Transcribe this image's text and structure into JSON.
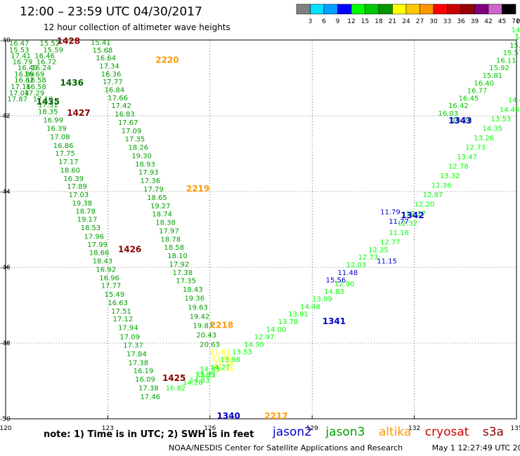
{
  "title": "12:00 – 23:59 UTC 04/30/2017",
  "subtitle": "12 hour collection of altimeter wave heights",
  "note": "note:  1) Time is in UTC;  2) SWH is in feet",
  "credit": "NOAA/NESDIS Center for Satellite Applications and Research",
  "timestamp": "May  1 12:27:49 UTC 2017",
  "legend": [
    {
      "name": "jason2",
      "color": "#0000cc"
    },
    {
      "name": "jason3",
      "color": "#00a000"
    },
    {
      "name": "altika",
      "color": "#ff9900"
    },
    {
      "name": "cryosat",
      "color": "#cc0000"
    },
    {
      "name": "s3a",
      "color": "#8b0000"
    }
  ],
  "colorbar": {
    "labels": [
      "3",
      "6",
      "9",
      "12",
      "15",
      "18",
      "21",
      "24",
      "27",
      "30",
      "33",
      "36",
      "39",
      "42",
      "45",
      "70"
    ],
    "unit": "(ft)",
    "colors": [
      "#808080",
      "#00e0ff",
      "#00a0ff",
      "#0000ff",
      "#00ff00",
      "#00c800",
      "#009600",
      "#ffff00",
      "#ffc800",
      "#ff9600",
      "#ff0000",
      "#c80000",
      "#960000",
      "#800080",
      "#cc66cc",
      "#000000"
    ]
  },
  "chart_data": {
    "type": "scatter",
    "xlim": [
      120,
      135
    ],
    "ylim": [
      -50,
      -40
    ],
    "xticks": [
      120,
      123,
      126,
      129,
      132,
      135
    ],
    "yticks": [
      -40,
      -42,
      -44,
      -46,
      -48,
      -50
    ],
    "grid": true,
    "passes": [
      {
        "label": "1428",
        "lon": 121.5,
        "lat": -40.1,
        "color": "#8b0000"
      },
      {
        "label": "1436",
        "lon": 121.6,
        "lat": -41.2,
        "color": "#006400"
      },
      {
        "label": "1435",
        "lon": 120.9,
        "lat": -41.7,
        "color": "#006400"
      },
      {
        "label": "1427",
        "lon": 121.8,
        "lat": -42.0,
        "color": "#8b0000"
      },
      {
        "label": "1426",
        "lon": 123.3,
        "lat": -45.6,
        "color": "#8b0000"
      },
      {
        "label": "1425",
        "lon": 124.6,
        "lat": -49.0,
        "color": "#8b0000"
      },
      {
        "label": "2220",
        "lon": 124.4,
        "lat": -40.6,
        "color": "#ff9900"
      },
      {
        "label": "2219",
        "lon": 125.3,
        "lat": -44.0,
        "color": "#ff9900"
      },
      {
        "label": "2218",
        "lon": 126.0,
        "lat": -47.6,
        "color": "#ff9900"
      },
      {
        "label": "2217",
        "lon": 127.6,
        "lat": -50.0,
        "color": "#ff9900"
      },
      {
        "label": "1340",
        "lon": 126.2,
        "lat": -50.0,
        "color": "#0000cc"
      },
      {
        "label": "1341",
        "lon": 129.3,
        "lat": -47.5,
        "color": "#0000cc"
      },
      {
        "label": "1342",
        "lon": 131.6,
        "lat": -44.7,
        "color": "#0000cc"
      },
      {
        "label": "1343",
        "lon": 133.0,
        "lat": -42.2,
        "color": "#0000cc"
      }
    ],
    "tracks": [
      {
        "name": "s3a_1428_1427",
        "color": "#00a000",
        "points": [
          [
            120.1,
            -40.15,
            "16.47"
          ],
          [
            121.0,
            -40.15,
            "15.52"
          ],
          [
            120.1,
            -40.32,
            "15.53"
          ],
          [
            121.1,
            -40.32,
            "15.59"
          ],
          [
            120.15,
            -40.48,
            "17.41"
          ],
          [
            120.85,
            -40.48,
            "16.46"
          ],
          [
            120.2,
            -40.64,
            "16.79"
          ],
          [
            120.9,
            -40.64,
            "16.72"
          ],
          [
            120.35,
            -40.8,
            "16.49"
          ],
          [
            120.75,
            -40.8,
            "16.24"
          ],
          [
            120.25,
            -40.96,
            "16.89"
          ],
          [
            120.55,
            -40.96,
            "16.69"
          ],
          [
            120.25,
            -41.12,
            "16.62"
          ],
          [
            120.6,
            -41.12,
            "16.58"
          ],
          [
            120.15,
            -41.3,
            "17.16"
          ],
          [
            120.6,
            -41.3,
            "16.58"
          ],
          [
            120.1,
            -41.46,
            "17.04"
          ],
          [
            120.55,
            -41.46,
            "17.29"
          ],
          [
            120.05,
            -41.62,
            "17.87"
          ],
          [
            120.8,
            -41.62,
            "17.10"
          ],
          [
            120.95,
            -41.78,
            "17.51"
          ],
          [
            120.95,
            -41.95,
            "18.35"
          ]
        ]
      },
      {
        "name": "s3a_1426",
        "color": "#00a000",
        "points": [
          [
            121.1,
            -42.18,
            "16.99"
          ],
          [
            121.2,
            -42.4,
            "16.39"
          ],
          [
            121.3,
            -42.62,
            "17.08"
          ],
          [
            121.4,
            -42.85,
            "16.86"
          ],
          [
            121.45,
            -43.06,
            "17.75"
          ],
          [
            121.55,
            -43.28,
            "17.17"
          ],
          [
            121.6,
            -43.5,
            "18.60"
          ],
          [
            121.7,
            -43.72,
            "16.39"
          ],
          [
            121.8,
            -43.93,
            "17.89"
          ],
          [
            121.85,
            -44.15,
            "17.03"
          ],
          [
            121.95,
            -44.37,
            "19.38"
          ],
          [
            122.05,
            -44.58,
            "18.78"
          ],
          [
            122.1,
            -44.8,
            "19.17"
          ],
          [
            122.2,
            -45.02,
            "18.53"
          ],
          [
            122.3,
            -45.25,
            "17.96"
          ],
          [
            122.4,
            -45.46,
            "17.99"
          ],
          [
            122.45,
            -45.68,
            "18.66"
          ],
          [
            122.55,
            -45.9,
            "18.43"
          ],
          [
            122.65,
            -46.12,
            "16.92"
          ],
          [
            122.75,
            -46.34,
            "16.96"
          ],
          [
            122.8,
            -46.55,
            "17.77"
          ],
          [
            122.9,
            -46.78,
            "15.49"
          ],
          [
            123.0,
            -47.0,
            "16.63"
          ],
          [
            123.1,
            -47.22,
            "17.51"
          ],
          [
            123.15,
            -47.43,
            "17.12"
          ]
        ]
      },
      {
        "name": "s3a_1425",
        "color": "#00a000",
        "points": [
          [
            123.3,
            -47.66,
            "17.94"
          ],
          [
            123.35,
            -47.9,
            "17.09"
          ],
          [
            123.45,
            -48.12,
            "17.37"
          ],
          [
            123.55,
            -48.35,
            "17.84"
          ],
          [
            123.6,
            -48.58,
            "17.38"
          ],
          [
            123.75,
            -48.8,
            "16.19"
          ],
          [
            123.8,
            -49.02,
            "16.09"
          ],
          [
            123.9,
            -49.25,
            "17.38"
          ],
          [
            123.95,
            -49.48,
            "17.46"
          ]
        ]
      },
      {
        "name": "altika_2220",
        "color": "#00a000",
        "points": [
          [
            122.5,
            -40.13,
            "15.41"
          ],
          [
            122.55,
            -40.33,
            "15.68"
          ],
          [
            122.65,
            -40.54,
            "16.64"
          ],
          [
            122.75,
            -40.75,
            "17.34"
          ],
          [
            122.8,
            -40.96,
            "16.36"
          ],
          [
            122.85,
            -41.17,
            "17.77"
          ],
          [
            122.9,
            -41.38,
            "16.84"
          ],
          [
            123.0,
            -41.59,
            "17.66"
          ],
          [
            123.1,
            -41.8,
            "17.42"
          ],
          [
            123.2,
            -42.02,
            "16.83"
          ],
          [
            123.3,
            -42.24,
            "17.67"
          ],
          [
            123.4,
            -42.46,
            "17.09"
          ],
          [
            123.5,
            -42.68,
            "17.35"
          ],
          [
            123.6,
            -42.9,
            "18.26"
          ],
          [
            123.7,
            -43.12,
            "19.30"
          ],
          [
            123.8,
            -43.34,
            "18.93"
          ],
          [
            123.9,
            -43.56,
            "17.93"
          ]
        ]
      },
      {
        "name": "altika_2219",
        "color": "#00a000",
        "points": [
          [
            123.95,
            -43.78,
            "17.36"
          ],
          [
            124.05,
            -44.0,
            "17.79"
          ],
          [
            124.15,
            -44.22,
            "18.65"
          ],
          [
            124.25,
            -44.44,
            "19.27"
          ],
          [
            124.3,
            -44.66,
            "18.74"
          ],
          [
            124.4,
            -44.88,
            "18.38"
          ],
          [
            124.5,
            -45.1,
            "17.97"
          ],
          [
            124.55,
            -45.32,
            "18.78"
          ],
          [
            124.65,
            -45.54,
            "18.58"
          ],
          [
            124.75,
            -45.76,
            "18.10"
          ],
          [
            124.8,
            -45.98,
            "17.92"
          ],
          [
            124.9,
            -46.2,
            "17.38"
          ],
          [
            125.0,
            -46.42,
            "17.35"
          ]
        ]
      },
      {
        "name": "altika_2218",
        "color": "#00a000",
        "points": [
          [
            125.2,
            -46.65,
            "18.43"
          ],
          [
            125.25,
            -46.88,
            "19.36"
          ],
          [
            125.35,
            -47.12,
            "19.63"
          ],
          [
            125.4,
            -47.36,
            "19.42"
          ],
          [
            125.5,
            -47.6,
            "19.83"
          ],
          [
            125.6,
            -47.85,
            "20.43"
          ],
          [
            125.7,
            -48.1,
            "20.63"
          ]
        ]
      },
      {
        "name": "altika_2217",
        "color": "#ffff00",
        "points": [
          [
            126.0,
            -48.3,
            "21.63"
          ],
          [
            126.05,
            -48.45,
            "21.65"
          ],
          [
            126.1,
            -48.6,
            "21.34"
          ],
          [
            126.1,
            -48.75,
            "22.04"
          ]
        ]
      },
      {
        "name": "altika_2217b",
        "color": "#00ff00",
        "points": [
          [
            125.7,
            -48.75,
            "14.33"
          ],
          [
            125.6,
            -48.9,
            "15.21"
          ],
          [
            125.4,
            -49.05,
            "14.83"
          ],
          [
            124.7,
            -49.25,
            "16.82"
          ]
        ]
      },
      {
        "name": "jason3_1341",
        "color": "#00ff00",
        "points": [
          [
            125.2,
            -49.1,
            "14.28"
          ],
          [
            125.55,
            -48.9,
            "13.85"
          ],
          [
            126.0,
            -48.7,
            "14.27"
          ],
          [
            126.3,
            -48.5,
            "13.98"
          ],
          [
            126.65,
            -48.3,
            "13.53"
          ],
          [
            127.0,
            -48.1,
            "14.30"
          ],
          [
            127.3,
            -47.9,
            "12.97"
          ],
          [
            127.65,
            -47.7,
            "14.00"
          ],
          [
            128.0,
            -47.5,
            "13.78"
          ],
          [
            128.3,
            -47.3,
            "13.91"
          ],
          [
            128.65,
            -47.1,
            "14.48"
          ],
          [
            129.0,
            -46.9,
            "13.99"
          ],
          [
            129.35,
            -46.7,
            "14.83"
          ],
          [
            129.65,
            -46.5,
            "12.90"
          ]
        ]
      },
      {
        "name": "jason2_1341",
        "color": "#0000cc",
        "points": [
          [
            129.4,
            -46.4,
            "15.56"
          ],
          [
            129.75,
            -46.2,
            "11.48"
          ]
        ]
      },
      {
        "name": "jason3_1342",
        "color": "#00ff00",
        "points": [
          [
            130.0,
            -46.0,
            "12.03"
          ],
          [
            130.35,
            -45.8,
            "12.73"
          ],
          [
            130.65,
            -45.6,
            "12.25"
          ],
          [
            131.0,
            -45.4,
            "12.77"
          ],
          [
            131.25,
            -45.15,
            "11.16"
          ],
          [
            131.5,
            -44.9,
            "12.32"
          ],
          [
            131.75,
            -44.65,
            "12.17"
          ],
          [
            132.0,
            -44.4,
            "12.20"
          ],
          [
            132.25,
            -44.15,
            "12.87"
          ],
          [
            132.5,
            -43.9,
            "12.36"
          ],
          [
            132.75,
            -43.65,
            "13.32"
          ],
          [
            133.0,
            -43.4,
            "12.78"
          ],
          [
            133.25,
            -43.15,
            "13.47"
          ],
          [
            133.5,
            -42.9,
            "12.73"
          ],
          [
            133.75,
            -42.65,
            "13.26"
          ],
          [
            134.0,
            -42.4,
            "14.35"
          ],
          [
            134.25,
            -42.15,
            "13.53"
          ],
          [
            134.5,
            -41.9,
            "14.40"
          ],
          [
            134.75,
            -41.65,
            "14.66"
          ]
        ]
      },
      {
        "name": "jason2_1342",
        "color": "#0000cc",
        "points": [
          [
            131.0,
            -44.6,
            "11.79"
          ],
          [
            131.25,
            -44.85,
            "11.77"
          ],
          [
            130.9,
            -45.9,
            "11.15"
          ]
        ]
      },
      {
        "name": "jason3_1343",
        "color": "#00c800",
        "points": [
          [
            132.7,
            -42.0,
            "16.03"
          ],
          [
            133.0,
            -41.8,
            "16.42"
          ],
          [
            133.3,
            -41.6,
            "16.45"
          ],
          [
            133.55,
            -41.4,
            "16.77"
          ],
          [
            133.75,
            -41.2,
            "16.40"
          ],
          [
            134.0,
            -41.0,
            "15.81"
          ],
          [
            134.2,
            -40.8,
            "15.92"
          ],
          [
            134.4,
            -40.6,
            "16.11"
          ],
          [
            134.6,
            -40.4,
            "15.57"
          ],
          [
            134.8,
            -40.2,
            "15.82"
          ],
          [
            134.95,
            -40.0,
            "16.09"
          ]
        ]
      },
      {
        "name": "jason3_top",
        "color": "#00ff00",
        "points": [
          [
            134.85,
            -39.8,
            "14.18"
          ],
          [
            134.95,
            -39.95,
            "15.35"
          ]
        ]
      },
      {
        "name": "jason3_1343b",
        "color": "#00a000",
        "points": [
          [
            133.1,
            -42.18,
            "15.20"
          ]
        ]
      }
    ]
  }
}
